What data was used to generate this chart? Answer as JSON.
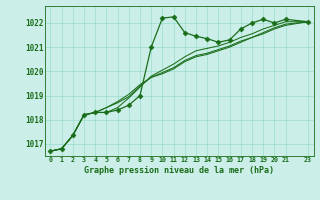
{
  "background_color": "#cceee8",
  "plot_bg_color": "#cceee8",
  "grid_color": "#99ddcc",
  "line_color": "#1a6e1a",
  "title": "Graphe pression niveau de la mer (hPa)",
  "ylim": [
    1016.5,
    1022.7
  ],
  "xlim": [
    -0.5,
    23.5
  ],
  "yticks": [
    1017,
    1018,
    1019,
    1020,
    1021,
    1022
  ],
  "xticks": [
    0,
    1,
    2,
    3,
    4,
    5,
    6,
    7,
    8,
    9,
    10,
    11,
    12,
    13,
    14,
    15,
    16,
    17,
    18,
    19,
    20,
    21,
    23
  ],
  "xtick_labels": [
    "0",
    "1",
    "2",
    "3",
    "4",
    "5",
    "6",
    "7",
    "8",
    "9",
    "10",
    "11",
    "12",
    "13",
    "14",
    "15",
    "16",
    "17",
    "18",
    "19",
    "20",
    "21",
    "23"
  ],
  "x_vals": [
    0,
    1,
    2,
    3,
    4,
    5,
    6,
    7,
    8,
    9,
    10,
    11,
    12,
    13,
    14,
    15,
    16,
    17,
    18,
    19,
    20,
    21,
    23
  ],
  "series": [
    [
      1016.7,
      1016.8,
      1017.35,
      1018.2,
      1018.3,
      1018.3,
      1018.4,
      1018.6,
      1019.0,
      1021.0,
      1022.2,
      1022.25,
      1021.6,
      1021.45,
      1021.35,
      1021.2,
      1021.3,
      1021.75,
      1022.0,
      1022.15,
      1022.0,
      1022.15,
      1022.05
    ],
    [
      1016.7,
      1016.8,
      1017.35,
      1018.2,
      1018.3,
      1018.3,
      1018.5,
      1018.9,
      1019.35,
      1019.8,
      1020.05,
      1020.3,
      1020.6,
      1020.85,
      1020.95,
      1021.05,
      1021.2,
      1021.4,
      1021.55,
      1021.75,
      1021.9,
      1022.05,
      1022.05
    ],
    [
      1016.7,
      1016.8,
      1017.35,
      1018.2,
      1018.3,
      1018.5,
      1018.7,
      1018.95,
      1019.4,
      1019.75,
      1019.95,
      1020.15,
      1020.45,
      1020.65,
      1020.75,
      1020.9,
      1021.05,
      1021.25,
      1021.4,
      1021.6,
      1021.8,
      1021.95,
      1022.05
    ],
    [
      1016.7,
      1016.8,
      1017.35,
      1018.2,
      1018.3,
      1018.5,
      1018.75,
      1019.05,
      1019.45,
      1019.75,
      1019.9,
      1020.1,
      1020.4,
      1020.6,
      1020.7,
      1020.85,
      1021.0,
      1021.2,
      1021.4,
      1021.55,
      1021.75,
      1021.9,
      1022.05
    ]
  ],
  "marker": "D",
  "marker_size": 2.5,
  "lw_main": 0.9,
  "lw_smooth": 0.75
}
